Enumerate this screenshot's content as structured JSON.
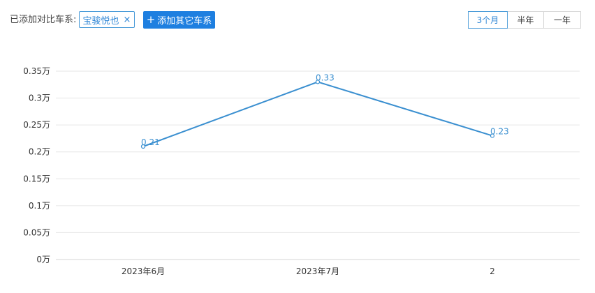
{
  "toolbar": {
    "compare_label": "已添加对比车系:",
    "tag_label": "宝骏悦也",
    "tag_close_glyph": "×",
    "add_plus": "+",
    "add_label": "添加其它车系",
    "ranges": [
      {
        "label": "3个月",
        "active": true
      },
      {
        "label": "半年",
        "active": false
      },
      {
        "label": "一年",
        "active": false
      }
    ]
  },
  "colors": {
    "line": "#3a8fd0",
    "accent": "#1e7fe0",
    "grid": "#e6e6e6"
  },
  "chart_data": {
    "type": "line",
    "categories": [
      "2023年6月",
      "2023年7月",
      "2"
    ],
    "series": [
      {
        "values": [
          0.21,
          0.33,
          0.23
        ],
        "labels": [
          "0.21",
          "0.33",
          "0.23"
        ]
      }
    ],
    "yticks": [
      "0万",
      "0.05万",
      "0.1万",
      "0.15万",
      "0.2万",
      "0.25万",
      "0.3万",
      "0.35万"
    ],
    "ylim": [
      0,
      0.35
    ],
    "grid": true,
    "xlabel": "",
    "ylabel": ""
  }
}
